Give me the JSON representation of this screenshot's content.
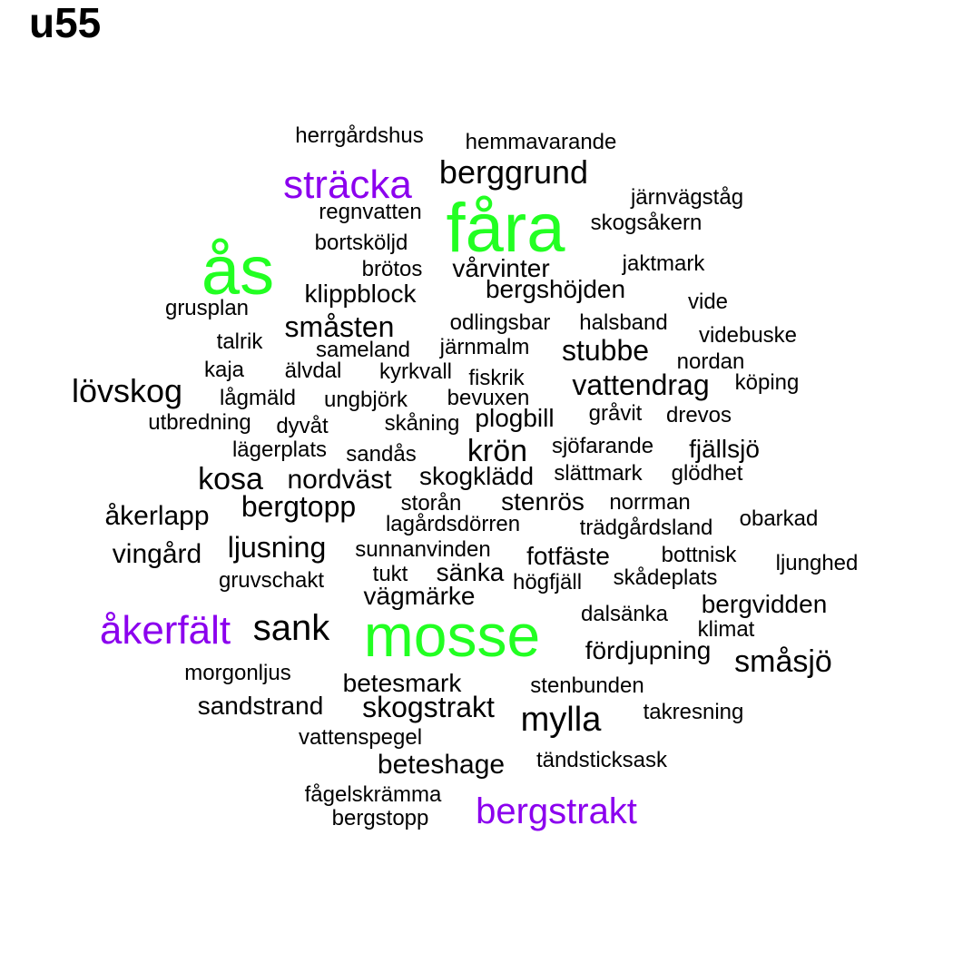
{
  "title": "u55",
  "colors": {
    "black": "#000000",
    "green": "#22ff22",
    "purple": "#8b00ee"
  },
  "words": [
    {
      "text": "herrgårdshus",
      "color": "black"
    },
    {
      "text": "hemmavarande",
      "color": "black"
    },
    {
      "text": "sträcka",
      "color": "purple"
    },
    {
      "text": "berggrund",
      "color": "black"
    },
    {
      "text": "järnvägståg",
      "color": "black"
    },
    {
      "text": "fåra",
      "color": "green"
    },
    {
      "text": "regnvatten",
      "color": "black"
    },
    {
      "text": "skogsåkern",
      "color": "black"
    },
    {
      "text": "ås",
      "color": "green"
    },
    {
      "text": "bortsköljd",
      "color": "black"
    },
    {
      "text": "jaktmark",
      "color": "black"
    },
    {
      "text": "brötos",
      "color": "black"
    },
    {
      "text": "vårvinter",
      "color": "black"
    },
    {
      "text": "klippblock",
      "color": "black"
    },
    {
      "text": "bergshöjden",
      "color": "black"
    },
    {
      "text": "vide",
      "color": "black"
    },
    {
      "text": "grusplan",
      "color": "black"
    },
    {
      "text": "småsten",
      "color": "black"
    },
    {
      "text": "odlingsbar",
      "color": "black"
    },
    {
      "text": "halsband",
      "color": "black"
    },
    {
      "text": "videbuske",
      "color": "black"
    },
    {
      "text": "talrik",
      "color": "black"
    },
    {
      "text": "sameland",
      "color": "black"
    },
    {
      "text": "järnmalm",
      "color": "black"
    },
    {
      "text": "stubbe",
      "color": "black"
    },
    {
      "text": "nordan",
      "color": "black"
    },
    {
      "text": "kaja",
      "color": "black"
    },
    {
      "text": "älvdal",
      "color": "black"
    },
    {
      "text": "kyrkvall",
      "color": "black"
    },
    {
      "text": "fiskrik",
      "color": "black"
    },
    {
      "text": "vattendrag",
      "color": "black"
    },
    {
      "text": "köping",
      "color": "black"
    },
    {
      "text": "lövskog",
      "color": "black"
    },
    {
      "text": "lågmäld",
      "color": "black"
    },
    {
      "text": "ungbjörk",
      "color": "black"
    },
    {
      "text": "bevuxen",
      "color": "black"
    },
    {
      "text": "gråvit",
      "color": "black"
    },
    {
      "text": "drevos",
      "color": "black"
    },
    {
      "text": "utbredning",
      "color": "black"
    },
    {
      "text": "dyvåt",
      "color": "black"
    },
    {
      "text": "skåning",
      "color": "black"
    },
    {
      "text": "plogbill",
      "color": "black"
    },
    {
      "text": "lägerplats",
      "color": "black"
    },
    {
      "text": "sandås",
      "color": "black"
    },
    {
      "text": "krön",
      "color": "black"
    },
    {
      "text": "sjöfarande",
      "color": "black"
    },
    {
      "text": "fjällsjö",
      "color": "black"
    },
    {
      "text": "kosa",
      "color": "black"
    },
    {
      "text": "nordväst",
      "color": "black"
    },
    {
      "text": "skogklädd",
      "color": "black"
    },
    {
      "text": "slättmark",
      "color": "black"
    },
    {
      "text": "glödhet",
      "color": "black"
    },
    {
      "text": "bergtopp",
      "color": "black"
    },
    {
      "text": "storån",
      "color": "black"
    },
    {
      "text": "stenrös",
      "color": "black"
    },
    {
      "text": "norrman",
      "color": "black"
    },
    {
      "text": "åkerlapp",
      "color": "black"
    },
    {
      "text": "lagårdsdörren",
      "color": "black"
    },
    {
      "text": "trädgårdsland",
      "color": "black"
    },
    {
      "text": "obarkad",
      "color": "black"
    },
    {
      "text": "ljusning",
      "color": "black"
    },
    {
      "text": "sunnanvinden",
      "color": "black"
    },
    {
      "text": "vingård",
      "color": "black"
    },
    {
      "text": "fotfäste",
      "color": "black"
    },
    {
      "text": "bottnisk",
      "color": "black"
    },
    {
      "text": "ljunghed",
      "color": "black"
    },
    {
      "text": "tukt",
      "color": "black"
    },
    {
      "text": "sänka",
      "color": "black"
    },
    {
      "text": "gruvschakt",
      "color": "black"
    },
    {
      "text": "högfjäll",
      "color": "black"
    },
    {
      "text": "skådeplats",
      "color": "black"
    },
    {
      "text": "vägmärke",
      "color": "black"
    },
    {
      "text": "bergvidden",
      "color": "black"
    },
    {
      "text": "dalsänka",
      "color": "black"
    },
    {
      "text": "åkerfält",
      "color": "purple"
    },
    {
      "text": "sank",
      "color": "black"
    },
    {
      "text": "mosse",
      "color": "green"
    },
    {
      "text": "klimat",
      "color": "black"
    },
    {
      "text": "fördjupning",
      "color": "black"
    },
    {
      "text": "småsjö",
      "color": "black"
    },
    {
      "text": "morgonljus",
      "color": "black"
    },
    {
      "text": "betesmark",
      "color": "black"
    },
    {
      "text": "stenbunden",
      "color": "black"
    },
    {
      "text": "sandstrand",
      "color": "black"
    },
    {
      "text": "skogstrakt",
      "color": "black"
    },
    {
      "text": "mylla",
      "color": "black"
    },
    {
      "text": "takresning",
      "color": "black"
    },
    {
      "text": "vattenspegel",
      "color": "black"
    },
    {
      "text": "beteshage",
      "color": "black"
    },
    {
      "text": "tändsticksask",
      "color": "black"
    },
    {
      "text": "fågelskrämma",
      "color": "black"
    },
    {
      "text": "bergstrakt",
      "color": "purple"
    },
    {
      "text": "bergstopp",
      "color": "black"
    }
  ]
}
